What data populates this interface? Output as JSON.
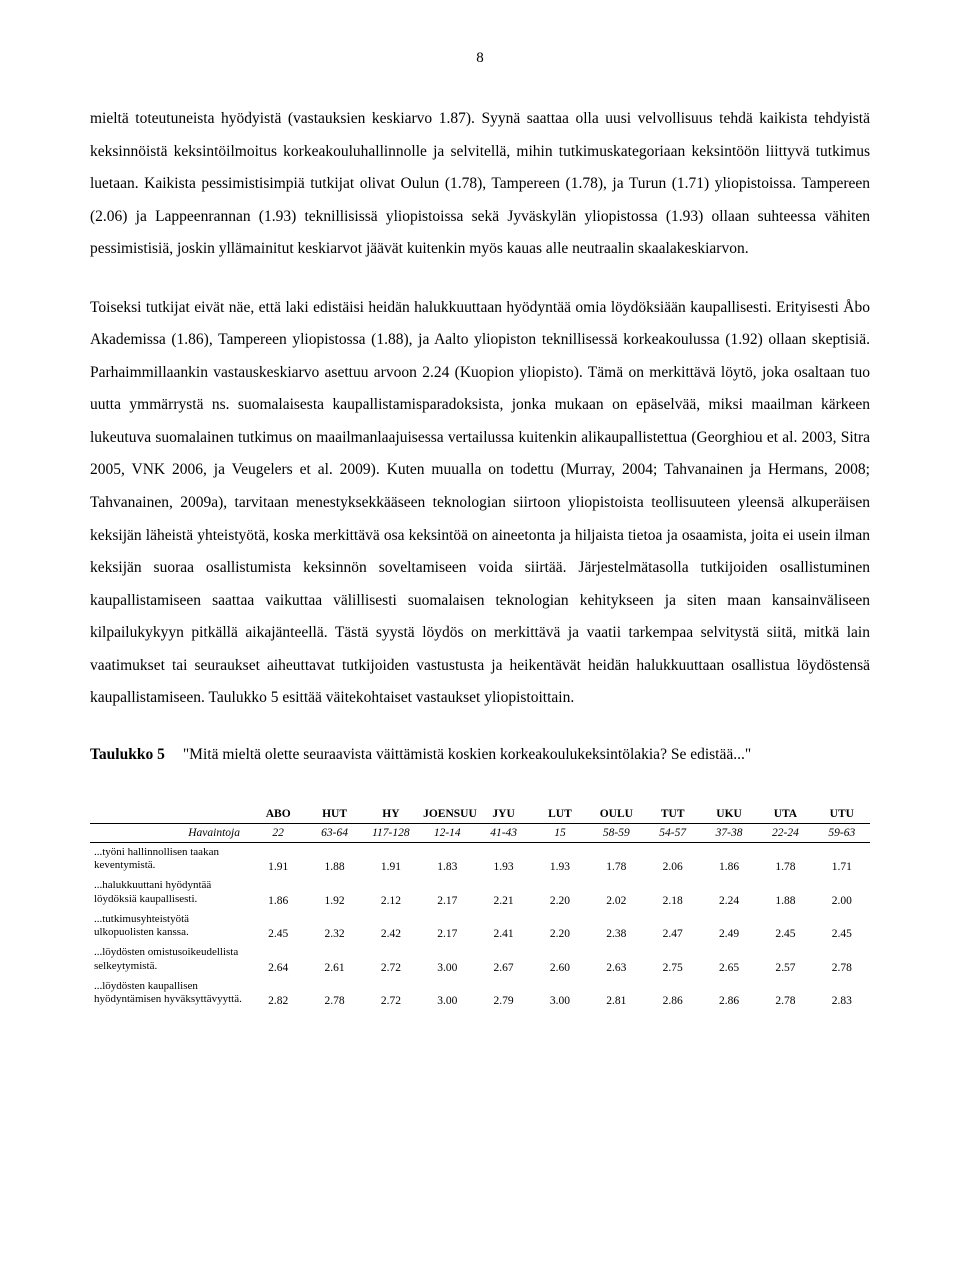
{
  "page_number": "8",
  "paragraphs": {
    "p1": "mieltä toteutuneista hyödyistä (vastauksien keskiarvo 1.87). Syynä saattaa olla uusi velvollisuus tehdä kaikista tehdyistä keksinnöistä keksintöilmoitus korkeakouluhallinnolle ja selvitellä, mihin tutkimuskategoriaan keksintöön liittyvä tutkimus luetaan. Kaikista pessimistisimpiä tutkijat olivat Oulun (1.78), Tampereen (1.78), ja Turun (1.71) yliopistoissa. Tampereen (2.06) ja Lappeenrannan (1.93) teknillisissä yliopistoissa sekä Jyväskylän yliopistossa (1.93) ollaan suhteessa vähiten pessimistisiä, joskin yllämainitut keskiarvot jäävät kuitenkin myös kauas alle neutraalin skaalakeskiarvon.",
    "p2": "Toiseksi tutkijat eivät näe, että laki edistäisi heidän halukkuuttaan hyödyntää omia löydöksiään kaupallisesti. Erityisesti Åbo Akademissa (1.86), Tampereen yliopistossa (1.88), ja Aalto yliopiston teknillisessä korkeakoulussa (1.92) ollaan skeptisiä. Parhaimmillaankin vastauskeskiarvo asettuu arvoon 2.24 (Kuopion yliopisto). Tämä on merkittävä löytö, joka osaltaan tuo uutta ymmärrystä ns. suomalaisesta kaupallistamisparadoksista, jonka mukaan on epäselvää, miksi maailman kärkeen lukeutuva suomalainen tutkimus on maailmanlaajuisessa vertailussa kuitenkin alikaupallistettua (Georghiou et al. 2003, Sitra 2005, VNK 2006, ja Veugelers et al. 2009). Kuten muualla on todettu (Murray, 2004; Tahvanainen ja Hermans, 2008; Tahvanainen, 2009a), tarvitaan menestyksekkääseen teknologian siirtoon yliopistoista teollisuuteen yleensä alkuperäisen keksijän läheistä yhteistyötä, koska merkittävä osa keksintöä on aineetonta ja hiljaista tietoa ja osaamista, joita ei usein ilman keksijän suoraa osallistumista keksinnön soveltamiseen voida siirtää. Järjestelmätasolla tutkijoiden osallistuminen kaupallistamiseen saattaa vaikuttaa välillisesti suomalaisen teknologian kehitykseen ja siten maan kansainväliseen kilpailukykyyn pitkällä aikajänteellä. Tästä syystä löydös on merkittävä ja vaatii tarkempaa selvitystä siitä, mitkä lain vaatimukset tai seuraukset aiheuttavat tutkijoiden vastustusta ja heikentävät heidän halukkuuttaan osallistua löydöstensä kaupallistamiseen. Taulukko 5 esittää väitekohtaiset vastaukset yliopistoittain."
  },
  "table_title": {
    "label": "Taulukko 5",
    "text": "\"Mitä mieltä olette seuraavista väittämistä koskien korkeakoulukeksintölakia? Se edistää...\""
  },
  "table": {
    "columns": [
      "ABO",
      "HUT",
      "HY",
      "JOENSUU",
      "JYU",
      "LUT",
      "OULU",
      "TUT",
      "UKU",
      "UTA",
      "UTU"
    ],
    "obs_label": "Havaintoja",
    "obs": [
      "22",
      "63-64",
      "117-128",
      "12-14",
      "41-43",
      "15",
      "58-59",
      "54-57",
      "37-38",
      "22-24",
      "59-63"
    ],
    "rows": [
      {
        "label": "...työni hallinnollisen taakan keventymistä.",
        "vals": [
          "1.91",
          "1.88",
          "1.91",
          "1.83",
          "1.93",
          "1.93",
          "1.78",
          "2.06",
          "1.86",
          "1.78",
          "1.71"
        ]
      },
      {
        "label": "...halukkuuttani hyödyntää löydöksiä kaupallisesti.",
        "vals": [
          "1.86",
          "1.92",
          "2.12",
          "2.17",
          "2.21",
          "2.20",
          "2.02",
          "2.18",
          "2.24",
          "1.88",
          "2.00"
        ]
      },
      {
        "label": "...tutkimusyhteistyötä ulkopuolisten kanssa.",
        "vals": [
          "2.45",
          "2.32",
          "2.42",
          "2.17",
          "2.41",
          "2.20",
          "2.38",
          "2.47",
          "2.49",
          "2.45",
          "2.45"
        ]
      },
      {
        "label": "...löydösten omistusoikeudellista selkeytymistä.",
        "vals": [
          "2.64",
          "2.61",
          "2.72",
          "3.00",
          "2.67",
          "2.60",
          "2.63",
          "2.75",
          "2.65",
          "2.57",
          "2.78"
        ]
      },
      {
        "label": "...löydösten kaupallisen hyödyntämisen hyväksyttävyyttä.",
        "vals": [
          "2.82",
          "2.78",
          "2.72",
          "3.00",
          "2.79",
          "3.00",
          "2.81",
          "2.86",
          "2.86",
          "2.78",
          "2.83"
        ]
      }
    ]
  }
}
